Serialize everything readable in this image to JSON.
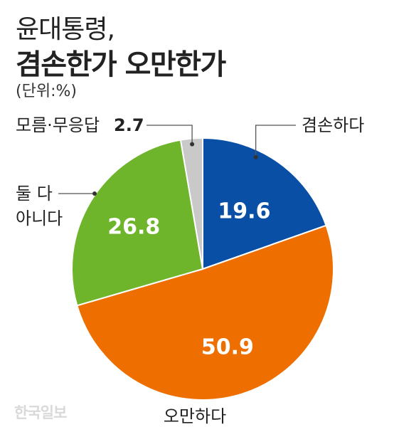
{
  "title": {
    "line1": "윤대통령,",
    "line2": "겸손한가 오만한가"
  },
  "unit": "(단위:%)",
  "watermark": "한국일보",
  "chart_data": {
    "type": "pie",
    "title": "윤대통령, 겸손한가 오만한가",
    "unit": "%",
    "start_angle": "12 o'clock",
    "direction": "clockwise",
    "slices": [
      {
        "label": "겸손하다",
        "value": 19.6,
        "color": "#0A4FA6"
      },
      {
        "label": "오만하다",
        "value": 50.9,
        "color": "#EE6F00"
      },
      {
        "label": "둘 다 아니다",
        "label_lines": [
          "둘 다",
          "아니다"
        ],
        "value": 26.8,
        "color": "#6FB52C"
      },
      {
        "label": "모름·무응답",
        "value": 2.7,
        "color": "#C9C9C9"
      }
    ]
  }
}
